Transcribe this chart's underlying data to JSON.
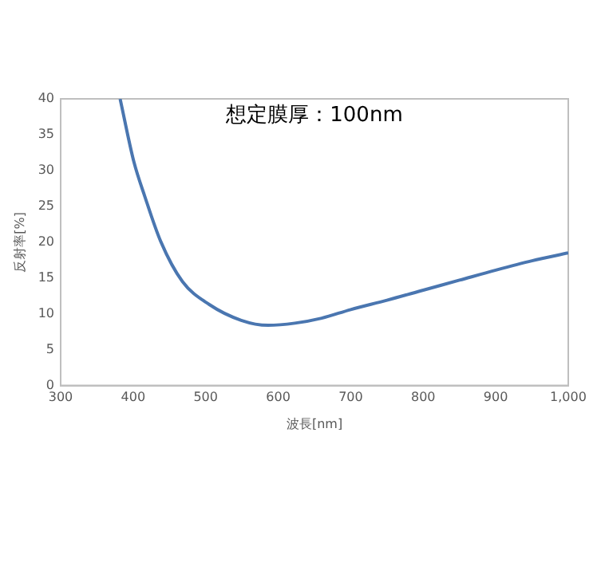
{
  "chart_data": {
    "type": "line",
    "xlabel": "波長[nm]",
    "ylabel": "反射率[%]",
    "annotations": [
      "想定膜厚：100nm"
    ],
    "x": [
      382,
      401,
      416,
      438,
      468,
      505,
      549,
      586,
      623,
      660,
      700,
      750,
      800,
      850,
      900,
      950,
      1000
    ],
    "series": [
      {
        "color": "#4a76b0",
        "values": [
          40,
          31.2,
          26.4,
          20.1,
          14.5,
          11.3,
          9.1,
          8.4,
          8.7,
          9.4,
          10.6,
          11.9,
          13.3,
          14.7,
          16.1,
          17.4,
          18.5
        ]
      }
    ],
    "xlim": [
      300,
      1000
    ],
    "xticks": [
      300,
      400,
      500,
      600,
      700,
      800,
      900,
      {
        "value": 1000,
        "label": "1,000"
      }
    ],
    "ylim": [
      0,
      40
    ],
    "yticks": [
      0,
      5,
      10,
      15,
      20,
      25,
      30,
      35,
      40
    ],
    "grid": false,
    "legend": false,
    "marker": "none",
    "line_style": "solid"
  }
}
